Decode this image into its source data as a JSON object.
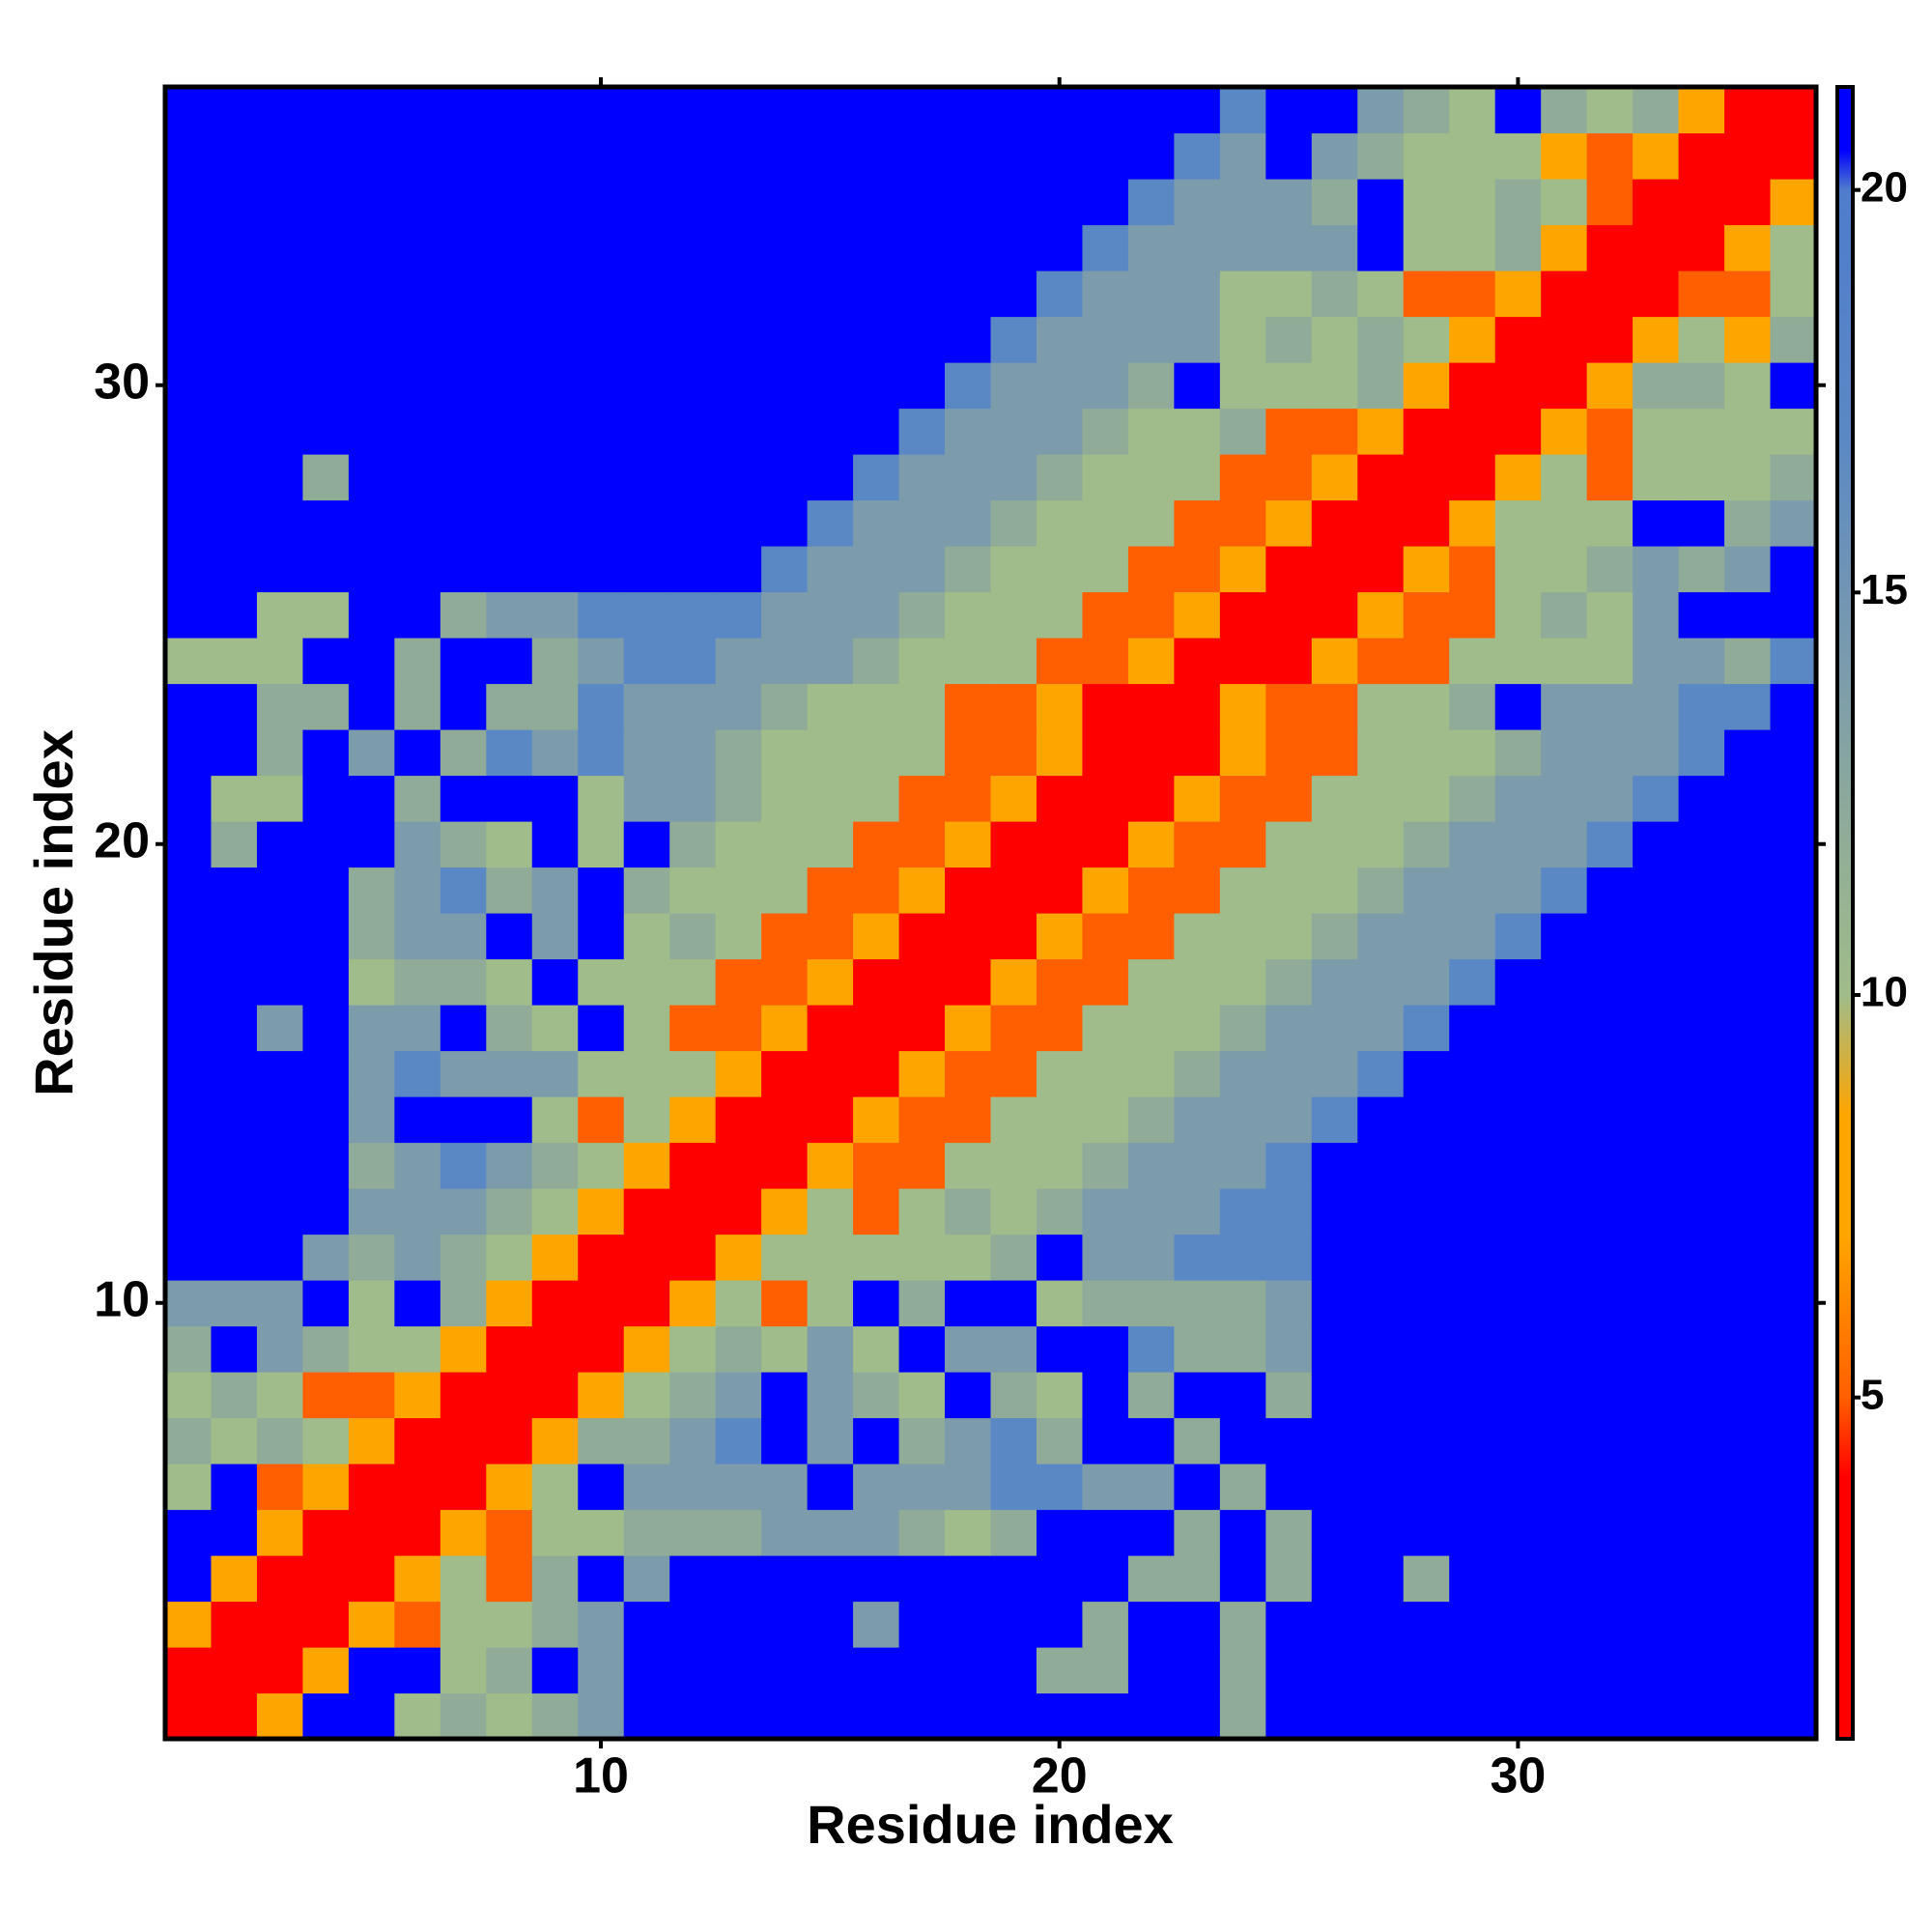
{
  "chart_data": {
    "type": "heatmap",
    "xlabel": "Residue index",
    "ylabel": "Residue index",
    "x": [
      1,
      2,
      3,
      4,
      5,
      6,
      7,
      8,
      9,
      10,
      11,
      12,
      13,
      14,
      15,
      16,
      17,
      18,
      19,
      20,
      21,
      22,
      23,
      24,
      25,
      26,
      27,
      28,
      29,
      30,
      31,
      32,
      33,
      34,
      35,
      36
    ],
    "y": [
      1,
      2,
      3,
      4,
      5,
      6,
      7,
      8,
      9,
      10,
      11,
      12,
      13,
      14,
      15,
      16,
      17,
      18,
      19,
      20,
      21,
      22,
      23,
      24,
      25,
      26,
      27,
      28,
      29,
      30,
      31,
      32,
      33,
      34,
      35,
      36
    ],
    "xlim": [
      0.5,
      36.5
    ],
    "ylim": [
      0.5,
      36.5
    ],
    "xticks": [
      10,
      20,
      30
    ],
    "yticks": [
      10,
      20,
      30
    ],
    "colorbar": {
      "lim": [
        0.76,
        21.28
      ],
      "ticks": [
        5,
        10,
        15,
        20
      ]
    },
    "colorscale": [
      [
        1,
        "#ff0000"
      ],
      [
        4,
        "#ff0000"
      ],
      [
        5,
        "#ff5f00"
      ],
      [
        7,
        "#ffa500"
      ],
      [
        8.5,
        "#ffa500"
      ],
      [
        10,
        "#a0bc8a"
      ],
      [
        12,
        "#90ac98"
      ],
      [
        14,
        "#7c9cac"
      ],
      [
        17,
        "#5a88c4"
      ],
      [
        20,
        "#4f7ccc"
      ],
      [
        20.5,
        "#0000ff"
      ],
      [
        21.3,
        "#0000ff"
      ]
    ],
    "z": [
      [
        2,
        2,
        7,
        21,
        21,
        10,
        12,
        10,
        12,
        14,
        21,
        21,
        21,
        21,
        21,
        21,
        21,
        21,
        21,
        21,
        21,
        21,
        21,
        12,
        21,
        21,
        21,
        21,
        21,
        21,
        21,
        21,
        21,
        21,
        21,
        21
      ],
      [
        2,
        2,
        2,
        7,
        21,
        21,
        10,
        12,
        21,
        14,
        21,
        21,
        21,
        21,
        21,
        21,
        21,
        21,
        21,
        12,
        12,
        21,
        21,
        12,
        21,
        21,
        21,
        21,
        21,
        21,
        21,
        21,
        21,
        21,
        21,
        21
      ],
      [
        7,
        2,
        2,
        2,
        7,
        5,
        10,
        10,
        12,
        14,
        21,
        21,
        21,
        21,
        21,
        14,
        21,
        21,
        21,
        21,
        12,
        21,
        21,
        12,
        21,
        21,
        21,
        21,
        21,
        21,
        21,
        21,
        21,
        21,
        21,
        21
      ],
      [
        21,
        7,
        2,
        2,
        2,
        7,
        10,
        5,
        12,
        21,
        14,
        21,
        21,
        21,
        21,
        21,
        21,
        21,
        21,
        21,
        21,
        12,
        12,
        21,
        12,
        21,
        21,
        12,
        21,
        21,
        21,
        21,
        21,
        21,
        21,
        21
      ],
      [
        21,
        21,
        7,
        2,
        2,
        2,
        7,
        5,
        10,
        10,
        12,
        12,
        12,
        14,
        14,
        14,
        12,
        10,
        12,
        21,
        21,
        21,
        12,
        21,
        12,
        21,
        21,
        21,
        21,
        21,
        21,
        21,
        21,
        21,
        21,
        21
      ],
      [
        10,
        21,
        5,
        7,
        2,
        2,
        2,
        7,
        10,
        21,
        14,
        14,
        14,
        14,
        21,
        14,
        14,
        14,
        17,
        17,
        14,
        14,
        21,
        12,
        21,
        21,
        21,
        21,
        21,
        21,
        21,
        21,
        21,
        21,
        21,
        21
      ],
      [
        12,
        10,
        12,
        10,
        7,
        2,
        2,
        2,
        7,
        12,
        12,
        14,
        17,
        21,
        14,
        21,
        12,
        14,
        17,
        12,
        21,
        21,
        12,
        21,
        21,
        21,
        21,
        21,
        21,
        21,
        21,
        21,
        21,
        21,
        21,
        21
      ],
      [
        10,
        12,
        10,
        5,
        5,
        7,
        2,
        2,
        2,
        7,
        10,
        12,
        14,
        21,
        14,
        12,
        10,
        21,
        12,
        10,
        21,
        12,
        21,
        21,
        12,
        21,
        21,
        21,
        21,
        21,
        21,
        21,
        21,
        21,
        21,
        21
      ],
      [
        12,
        21,
        14,
        12,
        10,
        10,
        7,
        2,
        2,
        2,
        7,
        10,
        12,
        10,
        14,
        10,
        21,
        14,
        14,
        21,
        21,
        17,
        12,
        12,
        14,
        21,
        21,
        21,
        21,
        21,
        21,
        21,
        21,
        21,
        21,
        21
      ],
      [
        14,
        14,
        14,
        21,
        10,
        21,
        12,
        7,
        2,
        2,
        2,
        7,
        10,
        5,
        10,
        21,
        12,
        21,
        21,
        10,
        12,
        12,
        12,
        12,
        14,
        21,
        21,
        21,
        21,
        21,
        21,
        21,
        21,
        21,
        21,
        21
      ],
      [
        21,
        21,
        21,
        14,
        12,
        14,
        12,
        10,
        7,
        2,
        2,
        2,
        7,
        10,
        10,
        10,
        10,
        10,
        12,
        21,
        14,
        14,
        17,
        17,
        17,
        21,
        21,
        21,
        21,
        21,
        21,
        21,
        21,
        21,
        21,
        21
      ],
      [
        21,
        21,
        21,
        21,
        14,
        14,
        14,
        12,
        10,
        7,
        2,
        2,
        2,
        7,
        10,
        5,
        10,
        12,
        10,
        12,
        14,
        14,
        14,
        17,
        17,
        21,
        21,
        21,
        21,
        21,
        21,
        21,
        21,
        21,
        21,
        21
      ],
      [
        21,
        21,
        21,
        21,
        12,
        14,
        17,
        14,
        12,
        10,
        7,
        2,
        2,
        2,
        7,
        5,
        5,
        10,
        10,
        10,
        12,
        14,
        14,
        14,
        17,
        21,
        21,
        21,
        21,
        21,
        21,
        21,
        21,
        21,
        21,
        21
      ],
      [
        21,
        21,
        21,
        21,
        14,
        21,
        21,
        21,
        10,
        5,
        10,
        7,
        2,
        2,
        2,
        7,
        5,
        5,
        10,
        10,
        10,
        12,
        14,
        14,
        14,
        17,
        21,
        21,
        21,
        21,
        21,
        21,
        21,
        21,
        21,
        21
      ],
      [
        21,
        21,
        21,
        21,
        14,
        17,
        14,
        14,
        14,
        10,
        10,
        10,
        7,
        2,
        2,
        2,
        7,
        5,
        5,
        10,
        10,
        10,
        12,
        14,
        14,
        14,
        17,
        21,
        21,
        21,
        21,
        21,
        21,
        21,
        21,
        21
      ],
      [
        21,
        21,
        14,
        21,
        14,
        14,
        21,
        12,
        10,
        21,
        10,
        5,
        5,
        7,
        2,
        2,
        2,
        7,
        5,
        5,
        10,
        10,
        10,
        12,
        14,
        14,
        14,
        17,
        21,
        21,
        21,
        21,
        21,
        21,
        21,
        21
      ],
      [
        21,
        21,
        21,
        21,
        10,
        12,
        12,
        10,
        21,
        10,
        10,
        10,
        5,
        5,
        7,
        2,
        2,
        2,
        7,
        5,
        5,
        10,
        10,
        10,
        12,
        14,
        14,
        14,
        17,
        21,
        21,
        21,
        21,
        21,
        21,
        21
      ],
      [
        21,
        21,
        21,
        21,
        12,
        14,
        14,
        21,
        14,
        21,
        10,
        12,
        10,
        5,
        5,
        7,
        2,
        2,
        2,
        7,
        5,
        5,
        10,
        10,
        10,
        12,
        14,
        14,
        14,
        17,
        21,
        21,
        21,
        21,
        21,
        21
      ],
      [
        21,
        21,
        21,
        21,
        12,
        14,
        17,
        12,
        14,
        21,
        12,
        10,
        10,
        10,
        5,
        5,
        7,
        2,
        2,
        2,
        7,
        5,
        5,
        10,
        10,
        10,
        12,
        14,
        14,
        14,
        17,
        21,
        21,
        21,
        21,
        21
      ],
      [
        21,
        12,
        21,
        21,
        21,
        14,
        12,
        10,
        21,
        10,
        21,
        12,
        10,
        10,
        10,
        5,
        5,
        7,
        2,
        2,
        2,
        7,
        5,
        5,
        10,
        10,
        10,
        12,
        14,
        14,
        14,
        17,
        21,
        21,
        21,
        21
      ],
      [
        21,
        10,
        10,
        21,
        21,
        12,
        21,
        21,
        21,
        10,
        14,
        14,
        12,
        10,
        10,
        10,
        5,
        5,
        7,
        2,
        2,
        2,
        7,
        5,
        5,
        10,
        10,
        10,
        12,
        14,
        14,
        14,
        17,
        21,
        21,
        21
      ],
      [
        21,
        21,
        12,
        21,
        14,
        21,
        12,
        17,
        14,
        17,
        14,
        14,
        12,
        10,
        10,
        10,
        10,
        5,
        5,
        7,
        2,
        2,
        2,
        7,
        5,
        5,
        10,
        10,
        10,
        12,
        14,
        14,
        14,
        17,
        21,
        21
      ],
      [
        21,
        21,
        12,
        12,
        21,
        12,
        21,
        12,
        12,
        17,
        14,
        14,
        14,
        12,
        10,
        10,
        10,
        5,
        5,
        7,
        2,
        2,
        2,
        7,
        5,
        5,
        10,
        10,
        12,
        21,
        14,
        14,
        14,
        17,
        17,
        21
      ],
      [
        10,
        10,
        10,
        21,
        21,
        12,
        21,
        21,
        12,
        14,
        17,
        17,
        14,
        14,
        14,
        12,
        10,
        10,
        10,
        5,
        5,
        7,
        2,
        2,
        2,
        7,
        5,
        5,
        10,
        10,
        10,
        10,
        14,
        14,
        12,
        17
      ],
      [
        21,
        21,
        10,
        10,
        21,
        21,
        12,
        14,
        14,
        17,
        17,
        17,
        17,
        14,
        14,
        14,
        12,
        10,
        10,
        10,
        5,
        5,
        7,
        2,
        2,
        2,
        7,
        5,
        5,
        10,
        12,
        10,
        14,
        21,
        21,
        21
      ],
      [
        21,
        21,
        21,
        21,
        21,
        21,
        21,
        21,
        21,
        21,
        21,
        21,
        21,
        17,
        14,
        14,
        14,
        12,
        10,
        10,
        10,
        5,
        5,
        7,
        2,
        2,
        2,
        7,
        5,
        10,
        10,
        12,
        14,
        12,
        14,
        21
      ],
      [
        21,
        21,
        21,
        21,
        21,
        21,
        21,
        21,
        21,
        21,
        21,
        21,
        21,
        21,
        17,
        14,
        14,
        14,
        12,
        10,
        10,
        10,
        5,
        5,
        7,
        2,
        2,
        2,
        7,
        10,
        10,
        10,
        21,
        21,
        12,
        14
      ],
      [
        21,
        21,
        21,
        12,
        21,
        21,
        21,
        21,
        21,
        21,
        21,
        21,
        21,
        21,
        21,
        17,
        14,
        14,
        14,
        12,
        10,
        10,
        10,
        5,
        5,
        7,
        2,
        2,
        2,
        7,
        10,
        5,
        10,
        10,
        10,
        12
      ],
      [
        21,
        21,
        21,
        21,
        21,
        21,
        21,
        21,
        21,
        21,
        21,
        21,
        21,
        21,
        21,
        21,
        17,
        14,
        14,
        14,
        12,
        10,
        10,
        12,
        5,
        5,
        7,
        2,
        2,
        2,
        7,
        5,
        10,
        10,
        10,
        10
      ],
      [
        21,
        21,
        21,
        21,
        21,
        21,
        21,
        21,
        21,
        21,
        21,
        21,
        21,
        21,
        21,
        21,
        21,
        17,
        14,
        14,
        14,
        12,
        21,
        10,
        10,
        10,
        12,
        7,
        2,
        2,
        2,
        7,
        12,
        12,
        10,
        21
      ],
      [
        21,
        21,
        21,
        21,
        21,
        21,
        21,
        21,
        21,
        21,
        21,
        21,
        21,
        21,
        21,
        21,
        21,
        21,
        17,
        14,
        14,
        14,
        14,
        10,
        12,
        10,
        12,
        10,
        7,
        2,
        2,
        2,
        7,
        10,
        7,
        12
      ],
      [
        21,
        21,
        21,
        21,
        21,
        21,
        21,
        21,
        21,
        21,
        21,
        21,
        21,
        21,
        21,
        21,
        21,
        21,
        21,
        17,
        14,
        14,
        14,
        10,
        10,
        12,
        10,
        5,
        5,
        7,
        2,
        2,
        2,
        5,
        5,
        10
      ],
      [
        21,
        21,
        21,
        21,
        21,
        21,
        21,
        21,
        21,
        21,
        21,
        21,
        21,
        21,
        21,
        21,
        21,
        21,
        21,
        21,
        17,
        14,
        14,
        14,
        14,
        14,
        21,
        10,
        10,
        12,
        7,
        2,
        2,
        2,
        7,
        10
      ],
      [
        21,
        21,
        21,
        21,
        21,
        21,
        21,
        21,
        21,
        21,
        21,
        21,
        21,
        21,
        21,
        21,
        21,
        21,
        21,
        21,
        21,
        17,
        14,
        14,
        14,
        12,
        21,
        10,
        10,
        12,
        10,
        5,
        2,
        2,
        2,
        7
      ],
      [
        21,
        21,
        21,
        21,
        21,
        21,
        21,
        21,
        21,
        21,
        21,
        21,
        21,
        21,
        21,
        21,
        21,
        21,
        21,
        21,
        21,
        21,
        17,
        14,
        21,
        14,
        12,
        10,
        10,
        10,
        7,
        5,
        7,
        2,
        2,
        2
      ],
      [
        21,
        21,
        21,
        21,
        21,
        21,
        21,
        21,
        21,
        21,
        21,
        21,
        21,
        21,
        21,
        21,
        21,
        21,
        21,
        21,
        21,
        21,
        21,
        17,
        21,
        21,
        14,
        12,
        10,
        21,
        12,
        10,
        12,
        7,
        2,
        2
      ]
    ]
  }
}
